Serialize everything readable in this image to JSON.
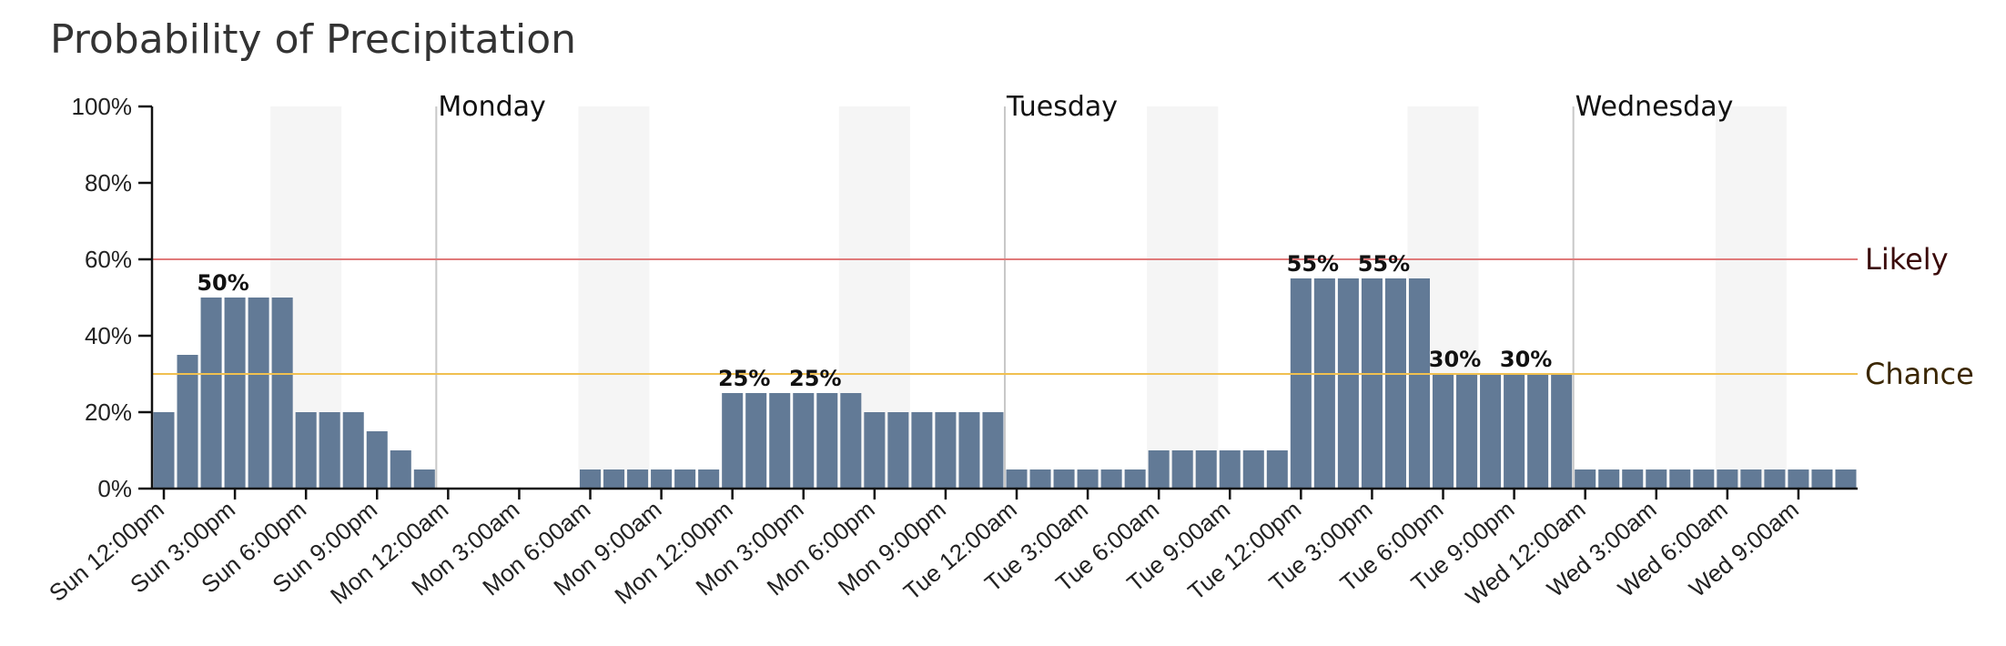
{
  "chart_data": {
    "type": "bar",
    "title": "Probability of Precipitation",
    "y_unit": "%",
    "ylim": [
      0,
      100
    ],
    "y_ticks": [
      "0%",
      "20%",
      "40%",
      "60%",
      "80%",
      "100%"
    ],
    "x_ticks": [
      "Sun 12:00pm",
      "Sun 3:00pm",
      "Sun 6:00pm",
      "Sun 9:00pm",
      "Mon 12:00am",
      "Mon 3:00am",
      "Mon 6:00am",
      "Mon 9:00am",
      "Mon 12:00pm",
      "Mon 3:00pm",
      "Mon 6:00pm",
      "Mon 9:00pm",
      "Tue 12:00am",
      "Tue 3:00am",
      "Tue 6:00am",
      "Tue 9:00am",
      "Tue 12:00pm",
      "Tue 3:00pm",
      "Tue 6:00pm",
      "Tue 9:00pm",
      "Wed 12:00am",
      "Wed 3:00am",
      "Wed 6:00am",
      "Wed 9:00am"
    ],
    "start_label": "Sun 12:00pm",
    "interval": "hourly",
    "values": [
      20,
      35,
      50,
      50,
      50,
      50,
      20,
      20,
      20,
      15,
      10,
      5,
      0,
      0,
      0,
      0,
      0,
      0,
      5,
      5,
      5,
      5,
      5,
      5,
      25,
      25,
      25,
      25,
      25,
      25,
      20,
      20,
      20,
      20,
      20,
      20,
      5,
      5,
      5,
      5,
      5,
      5,
      10,
      10,
      10,
      10,
      10,
      10,
      55,
      55,
      55,
      55,
      55,
      55,
      30,
      30,
      30,
      30,
      30,
      30,
      5,
      5,
      5,
      5,
      5,
      5,
      5,
      5,
      5,
      5,
      5,
      5
    ],
    "value_labels": [
      {
        "hour": 3,
        "text": "50%"
      },
      {
        "hour": 25,
        "text": "25%"
      },
      {
        "hour": 28,
        "text": "25%"
      },
      {
        "hour": 49,
        "text": "55%"
      },
      {
        "hour": 52,
        "text": "55%"
      },
      {
        "hour": 55,
        "text": "30%"
      },
      {
        "hour": 58,
        "text": "30%"
      }
    ],
    "day_separators": [
      {
        "hour": 12,
        "label": "Monday"
      },
      {
        "hour": 36,
        "label": "Tuesday"
      },
      {
        "hour": 60,
        "label": "Wednesday"
      }
    ],
    "night_bands": [
      {
        "from_hour": 5,
        "to_hour": 8
      },
      {
        "from_hour": 18,
        "to_hour": 21
      },
      {
        "from_hour": 29,
        "to_hour": 32
      },
      {
        "from_hour": 42,
        "to_hour": 45
      },
      {
        "from_hour": 53,
        "to_hour": 56
      },
      {
        "from_hour": 66,
        "to_hour": 69
      }
    ],
    "thresholds": [
      {
        "value": 60,
        "label": "Likely",
        "color": "#e07a7a",
        "label_color": "#3a0a0a"
      },
      {
        "value": 30,
        "label": "Chance",
        "color": "#f0c050",
        "label_color": "#3a2600"
      }
    ],
    "bar_color": "#627a96",
    "band_color": "#f5f5f5",
    "separator_color": "#c8c8c8",
    "grid": false
  }
}
